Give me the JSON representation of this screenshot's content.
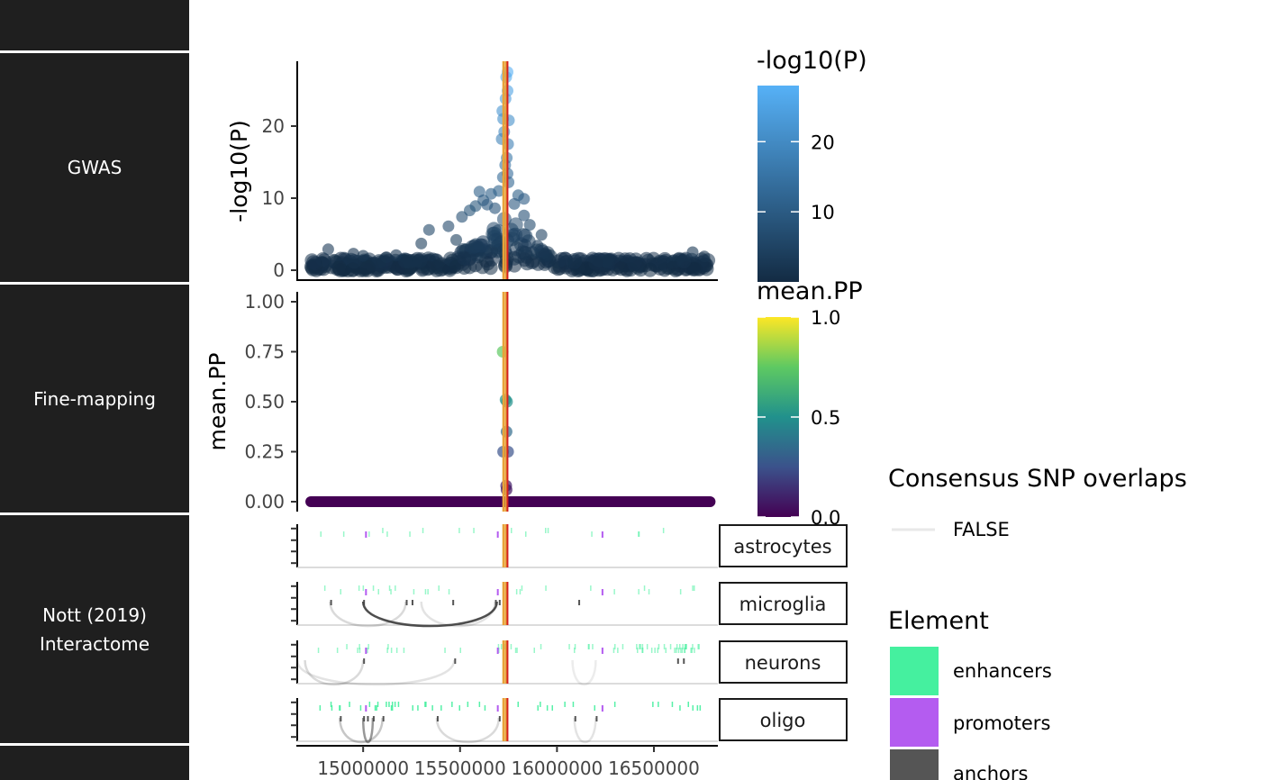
{
  "row_labels": {
    "gwas": "GWAS",
    "finemap": "Fine-mapping",
    "nott_line1": "Nott (2019)",
    "nott_line2": "Interactome"
  },
  "colors": {
    "strip_bg": "#1f1f1f",
    "lead_snp_line": "#e8a33a",
    "consensus_line": "#d42020",
    "enhancers": "#45f09f",
    "promoters": "#b45cf0",
    "anchors": "#555555",
    "gwas_low": "#132b43",
    "gwas_high": "#56b1f7"
  },
  "chart_data": [
    {
      "name": "gwas",
      "type": "scatter",
      "ylabel": "-log10(P)",
      "ylim": [
        0,
        28
      ],
      "yticks": [
        0,
        10,
        20
      ],
      "xlim": [
        14660000,
        16830000
      ],
      "lead_line_x": 15725000,
      "consensus_line_x": 15740000,
      "peak_points": [
        {
          "x": 15745000,
          "y": 27.5
        },
        {
          "x": 15738000,
          "y": 26.8
        },
        {
          "x": 15745000,
          "y": 24.9
        },
        {
          "x": 15735000,
          "y": 23.8
        },
        {
          "x": 15718000,
          "y": 22.1
        },
        {
          "x": 15722000,
          "y": 21.0
        },
        {
          "x": 15752000,
          "y": 20.8
        },
        {
          "x": 15728000,
          "y": 19.2
        },
        {
          "x": 15715000,
          "y": 18.2
        },
        {
          "x": 15748000,
          "y": 17.5
        },
        {
          "x": 15741000,
          "y": 15.6
        },
        {
          "x": 15733000,
          "y": 14.6
        },
        {
          "x": 15745000,
          "y": 13.4
        },
        {
          "x": 15721000,
          "y": 12.9
        },
        {
          "x": 15750000,
          "y": 12.2
        },
        {
          "x": 15600000,
          "y": 10.9
        },
        {
          "x": 15660000,
          "y": 10.6
        },
        {
          "x": 15800000,
          "y": 10.4
        },
        {
          "x": 15830000,
          "y": 9.9
        },
        {
          "x": 15620000,
          "y": 9.7
        },
        {
          "x": 15780000,
          "y": 9.2
        },
        {
          "x": 15550000,
          "y": 8.3
        },
        {
          "x": 15830000,
          "y": 7.6
        },
        {
          "x": 15510000,
          "y": 7.4
        },
        {
          "x": 15860000,
          "y": 6.3
        },
        {
          "x": 15440000,
          "y": 6.1
        },
        {
          "x": 15920000,
          "y": 4.9
        },
        {
          "x": 15340000,
          "y": 5.6
        },
        {
          "x": 15300000,
          "y": 3.7
        },
        {
          "x": 14820000,
          "y": 2.9
        },
        {
          "x": 16700000,
          "y": 2.5
        },
        {
          "x": 15170000,
          "y": 2.1
        },
        {
          "x": 14950000,
          "y": 2.3
        },
        {
          "x": 16760000,
          "y": 1.9
        },
        {
          "x": 15000000,
          "y": 2.0
        },
        {
          "x": 15120000,
          "y": 1.8
        },
        {
          "x": 15480000,
          "y": 4.2
        },
        {
          "x": 15680000,
          "y": 8.6
        },
        {
          "x": 15700000,
          "y": 11.0
        },
        {
          "x": 15640000,
          "y": 9.1
        },
        {
          "x": 15580000,
          "y": 8.9
        },
        {
          "x": 15900000,
          "y": 3.4
        }
      ]
    },
    {
      "name": "finemapping",
      "type": "scatter",
      "ylabel": "mean.PP",
      "ylim": [
        -0.04,
        1.04
      ],
      "yticks": [
        "0.00",
        "0.25",
        "0.50",
        "0.75",
        "1.00"
      ],
      "ytick_values": [
        0,
        0.25,
        0.5,
        0.75,
        1.0
      ],
      "xlim": [
        14660000,
        16830000
      ],
      "points": [
        {
          "x": 15720000,
          "y": 0.75
        },
        {
          "x": 15735000,
          "y": 0.51
        },
        {
          "x": 15742000,
          "y": 0.5
        },
        {
          "x": 15740000,
          "y": 0.35
        },
        {
          "x": 15722000,
          "y": 0.25
        },
        {
          "x": 15748000,
          "y": 0.25
        },
        {
          "x": 15738000,
          "y": 0.08
        },
        {
          "x": 15740000,
          "y": 0.06
        }
      ],
      "baseline_range": [
        14730000,
        16790000
      ]
    },
    {
      "name": "nott_interactome",
      "type": "tracks",
      "xlim": [
        14660000,
        16830000
      ],
      "x_ticks": [
        15000000,
        15500000,
        16000000,
        16500000
      ],
      "x_tick_labels": [
        "15000000",
        "15500000",
        "16000000",
        "16500000"
      ],
      "facets": [
        "astrocytes",
        "microglia",
        "neurons",
        "oligo"
      ]
    }
  ],
  "legends": {
    "gwas_scale": {
      "title": "-log10(P)",
      "ticks": [
        "10",
        "20"
      ],
      "tick_values": [
        10,
        20
      ],
      "max": 28
    },
    "pp_scale": {
      "title": "mean.PP",
      "ticks": [
        "0.0",
        "0.5",
        "1.0"
      ],
      "tick_values": [
        0,
        0.5,
        1.0
      ]
    },
    "consensus": {
      "title": "Consensus SNP overlaps",
      "items": [
        "FALSE"
      ]
    },
    "element": {
      "title": "Element",
      "items": [
        "enhancers",
        "promoters",
        "anchors"
      ]
    }
  }
}
